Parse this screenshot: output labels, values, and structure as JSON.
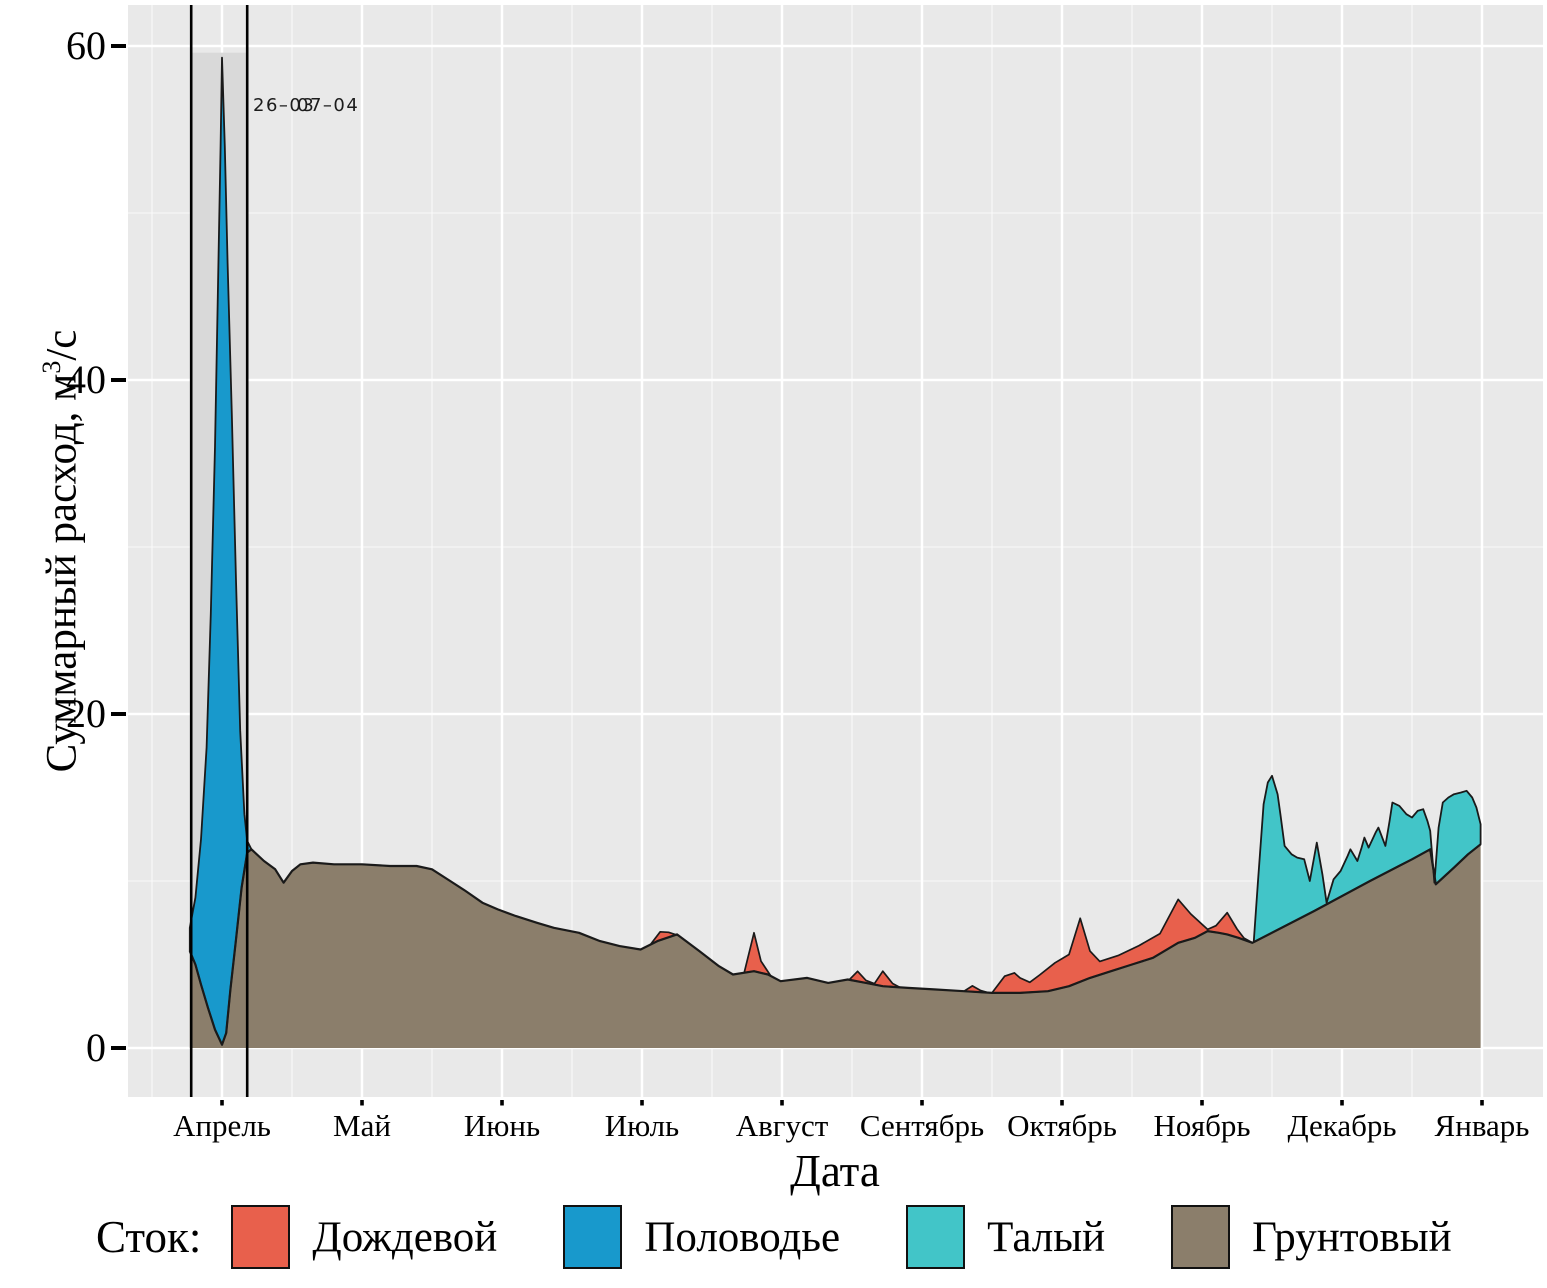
{
  "y_axis": {
    "title_prefix": "Суммарный расход, м",
    "title_sup": "3",
    "title_suffix": "/с",
    "ticks": [
      60,
      40,
      20,
      0
    ]
  },
  "x_axis": {
    "title": "Дата",
    "months": [
      "Апрель",
      "Май",
      "Июнь",
      "Июль",
      "Август",
      "Сентябрь",
      "Октябрь",
      "Ноябрь",
      "Декабрь",
      "Январь"
    ]
  },
  "annotation": {
    "flood_start_label": "26–03",
    "flood_end_label": "07–04"
  },
  "legend": {
    "title": "Сток:",
    "items": [
      {
        "key": "rain",
        "label": "Дождевой",
        "color": "#e8604c"
      },
      {
        "key": "flood",
        "label": "Половодье",
        "color": "#1899cc"
      },
      {
        "key": "melt",
        "label": "Талый",
        "color": "#42c5c8"
      },
      {
        "key": "ground",
        "label": "Грунтовый",
        "color": "#8b7e6b"
      }
    ]
  },
  "chart_data": {
    "type": "area",
    "stacked": true,
    "title": "",
    "xlabel": "Дата",
    "ylabel": "Суммарный расход, м3/с",
    "x_unit": "month index: 4=Апрель ... 13=Январь (следующий год)",
    "x_ticks": [
      {
        "m": 4,
        "label": "Апрель"
      },
      {
        "m": 5,
        "label": "Май"
      },
      {
        "m": 6,
        "label": "Июнь"
      },
      {
        "m": 7,
        "label": "Июль"
      },
      {
        "m": 8,
        "label": "Август"
      },
      {
        "m": 9,
        "label": "Сентябрь"
      },
      {
        "m": 10,
        "label": "Октябрь"
      },
      {
        "m": 11,
        "label": "Ноябрь"
      },
      {
        "m": 12,
        "label": "Декабрь"
      },
      {
        "m": 13,
        "label": "Январь"
      }
    ],
    "ylim": [
      0,
      60
    ],
    "y_ticks": [
      0,
      20,
      40,
      60
    ],
    "y_minor_gridlines_at": [
      10,
      30,
      50
    ],
    "x_minor_gridlines_at": [
      3.5,
      4.5,
      5.5,
      6.5,
      7.5,
      8.5,
      9.5,
      10.5,
      11.5,
      12.5,
      13.5
    ],
    "grid": "white on grey panel",
    "legend_position": "bottom",
    "flood_period_band": {
      "start_label": "26–03",
      "end_label": "07–04",
      "m_start": 3.78,
      "m_end": 4.18,
      "band_top_value": 59.6
    },
    "series": [
      {
        "key": "ground",
        "name": "Грунтовый",
        "color": "#8b7e6b",
        "role": "base",
        "points": [
          [
            3.77,
            5.8
          ],
          [
            3.81,
            5.0
          ],
          [
            3.85,
            3.8
          ],
          [
            3.9,
            2.4
          ],
          [
            3.95,
            1.1
          ],
          [
            4.0,
            0.2
          ],
          [
            4.03,
            0.9
          ],
          [
            4.06,
            3.5
          ],
          [
            4.1,
            6.5
          ],
          [
            4.14,
            9.6
          ],
          [
            4.18,
            11.7
          ],
          [
            4.21,
            11.9
          ],
          [
            4.3,
            11.2
          ],
          [
            4.38,
            10.7
          ],
          [
            4.44,
            9.9
          ],
          [
            4.5,
            10.6
          ],
          [
            4.56,
            11.0
          ],
          [
            4.65,
            11.1
          ],
          [
            4.8,
            11.0
          ],
          [
            5.0,
            11.0
          ],
          [
            5.2,
            10.9
          ],
          [
            5.39,
            10.9
          ],
          [
            5.5,
            10.7
          ],
          [
            5.63,
            10.0
          ],
          [
            5.74,
            9.4
          ],
          [
            5.86,
            8.7
          ],
          [
            5.97,
            8.3
          ],
          [
            6.1,
            7.9
          ],
          [
            6.25,
            7.5
          ],
          [
            6.37,
            7.2
          ],
          [
            6.55,
            6.9
          ],
          [
            6.7,
            6.4
          ],
          [
            6.84,
            6.1
          ],
          [
            6.99,
            5.9
          ],
          [
            7.11,
            6.4
          ],
          [
            7.25,
            6.8
          ],
          [
            7.41,
            5.8
          ],
          [
            7.55,
            4.9
          ],
          [
            7.65,
            4.4
          ],
          [
            7.8,
            4.6
          ],
          [
            7.9,
            4.4
          ],
          [
            7.99,
            4.0
          ],
          [
            8.18,
            4.2
          ],
          [
            8.33,
            3.9
          ],
          [
            8.47,
            4.1
          ],
          [
            8.6,
            3.9
          ],
          [
            8.72,
            3.7
          ],
          [
            8.9,
            3.6
          ],
          [
            9.1,
            3.5
          ],
          [
            9.3,
            3.4
          ],
          [
            9.5,
            3.3
          ],
          [
            9.7,
            3.3
          ],
          [
            9.9,
            3.4
          ],
          [
            10.05,
            3.7
          ],
          [
            10.2,
            4.2
          ],
          [
            10.35,
            4.6
          ],
          [
            10.5,
            5.0
          ],
          [
            10.65,
            5.4
          ],
          [
            10.83,
            6.3
          ],
          [
            10.95,
            6.6
          ],
          [
            11.04,
            7.0
          ],
          [
            11.12,
            6.9
          ],
          [
            11.18,
            6.8
          ],
          [
            11.26,
            6.6
          ],
          [
            11.36,
            6.3
          ],
          [
            11.8,
            8.2
          ],
          [
            12.2,
            10.0
          ],
          [
            12.5,
            11.3
          ],
          [
            12.63,
            11.9
          ],
          [
            12.67,
            9.8
          ],
          [
            12.8,
            10.8
          ],
          [
            12.9,
            11.6
          ],
          [
            12.99,
            12.2
          ]
        ]
      },
      {
        "key": "rain",
        "name": "Дождевой",
        "color": "#e8604c",
        "role": "stacked-on-ground",
        "value_type": "amount above Грунтовый",
        "segments": [
          [
            [
              7.06,
              0
            ],
            [
              7.13,
              0.5
            ],
            [
              7.19,
              0.3
            ],
            [
              7.26,
              0
            ]
          ],
          [
            [
              7.73,
              0
            ],
            [
              7.8,
              2.3
            ],
            [
              7.85,
              0.7
            ],
            [
              7.92,
              0
            ]
          ],
          [
            [
              8.48,
              0
            ],
            [
              8.54,
              0.6
            ],
            [
              8.6,
              0.15
            ],
            [
              8.66,
              0.05
            ],
            [
              8.72,
              0.9
            ],
            [
              8.79,
              0.2
            ],
            [
              8.84,
              0
            ]
          ],
          [
            [
              9.3,
              0
            ],
            [
              9.36,
              0.35
            ],
            [
              9.42,
              0.1
            ],
            [
              9.47,
              0
            ]
          ],
          [
            [
              9.5,
              0
            ],
            [
              9.59,
              1.0
            ],
            [
              9.66,
              1.2
            ],
            [
              9.7,
              0.9
            ],
            [
              9.77,
              0.6
            ],
            [
              9.84,
              1.0
            ],
            [
              9.95,
              1.6
            ],
            [
              10.05,
              1.9
            ],
            [
              10.13,
              3.8
            ],
            [
              10.2,
              1.6
            ],
            [
              10.27,
              0.8
            ],
            [
              10.4,
              0.8
            ],
            [
              10.55,
              1.0
            ],
            [
              10.7,
              1.2
            ],
            [
              10.83,
              2.6
            ],
            [
              10.92,
              1.5
            ],
            [
              11.04,
              0.1
            ],
            [
              11.1,
              0.4
            ],
            [
              11.18,
              1.3
            ],
            [
              11.25,
              0.5
            ],
            [
              11.3,
              0.1
            ],
            [
              11.36,
              0
            ]
          ]
        ]
      },
      {
        "key": "flood",
        "name": "Половодье",
        "color": "#1899cc",
        "role": "stacked-on-ground",
        "value_type": "total (ground+flood) top line",
        "points_top_total": [
          [
            3.77,
            7.2
          ],
          [
            3.81,
            9.0
          ],
          [
            3.85,
            12.5
          ],
          [
            3.89,
            18
          ],
          [
            3.92,
            26
          ],
          [
            3.95,
            36
          ],
          [
            3.97,
            45
          ],
          [
            3.99,
            54
          ],
          [
            4.0,
            59.3
          ],
          [
            4.02,
            54
          ],
          [
            4.04,
            47
          ],
          [
            4.07,
            38
          ],
          [
            4.1,
            28
          ],
          [
            4.13,
            19
          ],
          [
            4.16,
            14
          ],
          [
            4.18,
            12.4
          ],
          [
            4.21,
            11.9
          ]
        ]
      },
      {
        "key": "melt",
        "name": "Талый",
        "color": "#42c5c8",
        "role": "stacked-on-ground",
        "value_type": "total (ground+melt) top line",
        "points_top_total": [
          [
            11.37,
            6.4
          ],
          [
            11.4,
            10.0
          ],
          [
            11.44,
            14.6
          ],
          [
            11.47,
            15.9
          ],
          [
            11.5,
            16.3
          ],
          [
            11.54,
            15.2
          ],
          [
            11.56,
            14.0
          ],
          [
            11.59,
            12.1
          ],
          [
            11.64,
            11.6
          ],
          [
            11.68,
            11.4
          ],
          [
            11.73,
            11.3
          ],
          [
            11.77,
            10.0
          ],
          [
            11.82,
            12.3
          ],
          [
            11.86,
            10.4
          ],
          [
            11.89,
            8.7
          ],
          [
            11.94,
            10.1
          ],
          [
            11.99,
            10.6
          ],
          [
            12.04,
            11.5
          ],
          [
            12.06,
            11.9
          ],
          [
            12.11,
            11.2
          ],
          [
            12.14,
            12.0
          ],
          [
            12.16,
            12.6
          ],
          [
            12.19,
            12.0
          ],
          [
            12.24,
            12.9
          ],
          [
            12.26,
            13.2
          ],
          [
            12.31,
            12.1
          ],
          [
            12.34,
            13.6
          ],
          [
            12.36,
            14.7
          ],
          [
            12.41,
            14.5
          ],
          [
            12.46,
            14.0
          ],
          [
            12.5,
            13.8
          ],
          [
            12.54,
            14.2
          ],
          [
            12.58,
            14.3
          ],
          [
            12.61,
            13.6
          ],
          [
            12.63,
            13.0
          ],
          [
            12.66,
            9.9
          ],
          [
            12.69,
            13.2
          ],
          [
            12.72,
            14.7
          ],
          [
            12.76,
            15.0
          ],
          [
            12.8,
            15.2
          ],
          [
            12.85,
            15.3
          ],
          [
            12.89,
            15.4
          ],
          [
            12.93,
            15.0
          ],
          [
            12.96,
            14.4
          ],
          [
            12.99,
            13.4
          ]
        ]
      }
    ],
    "colors": {
      "panel_background": "#e9e9e9",
      "flood_band": "#d9d9d9",
      "gridline_major": "#ffffff",
      "outline": "#1a1a1a"
    }
  }
}
